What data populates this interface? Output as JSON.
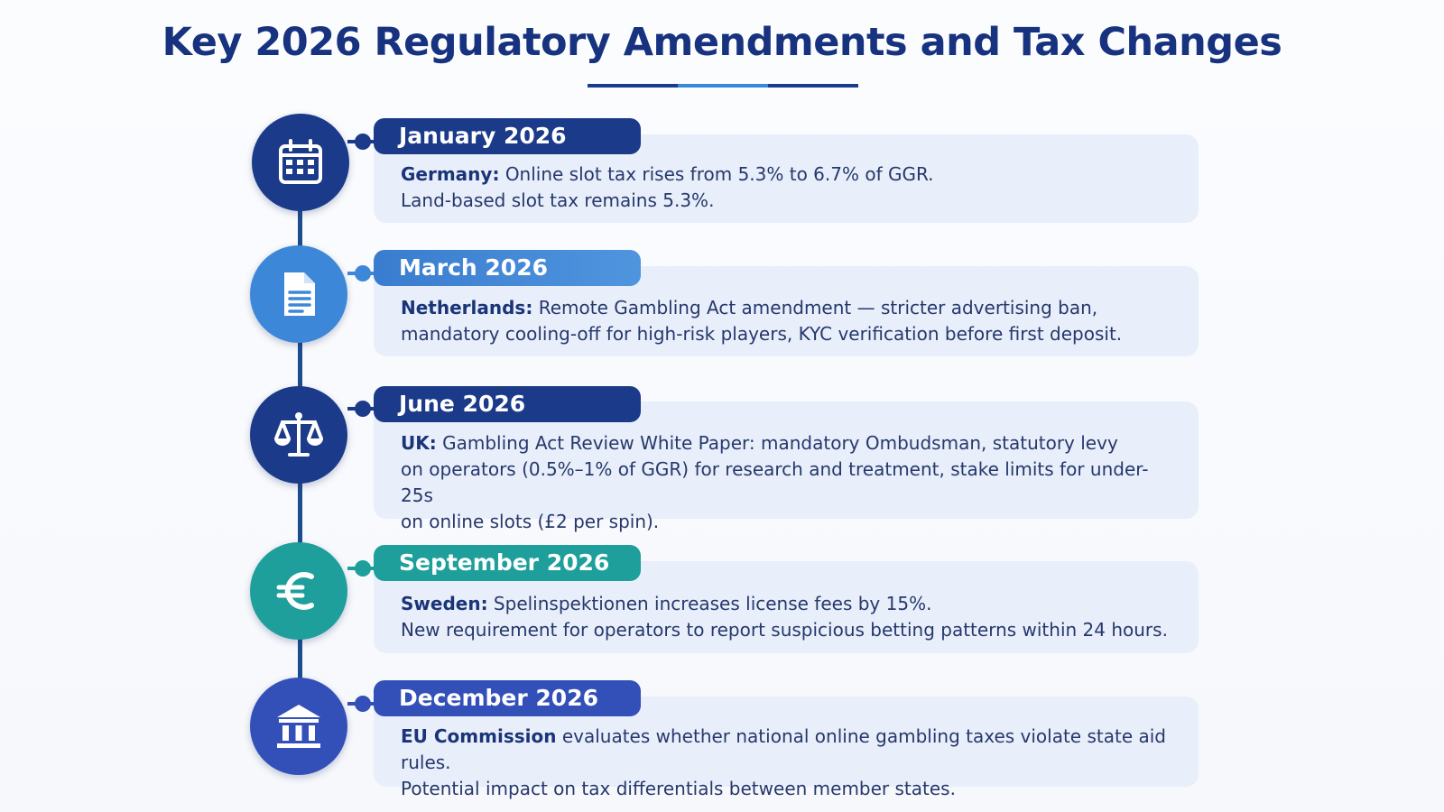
{
  "title": "Key 2026 Regulatory Amendments and Tax Changes",
  "colors": {
    "navy": "#1b3a8a",
    "blue": "#3d87d8",
    "teal": "#1e9f9b",
    "royal": "#3350b8",
    "card": "#e8effa"
  },
  "events": [
    {
      "date": "January 2026",
      "icon": "calendar-icon",
      "country": "Germany:",
      "text": "Online slot tax rises from 5.3% to 6.7% of GGR.",
      "line2": "Land-based slot tax remains 5.3%."
    },
    {
      "date": "March 2026",
      "icon": "document-icon",
      "country": "Netherlands:",
      "text": "Remote Gambling Act amendment — stricter advertising ban,",
      "line2": "mandatory cooling-off for high-risk players, KYC verification before first deposit."
    },
    {
      "date": "June 2026",
      "icon": "scales-icon",
      "country": "UK:",
      "text": "Gambling Act Review White Paper: mandatory Ombudsman, statutory levy",
      "line2": "on operators (0.5%–1% of GGR) for research and treatment, stake limits for under-25s",
      "line3": "on online slots (£2 per spin)."
    },
    {
      "date": "September 2026",
      "icon": "euro-icon",
      "country": "Sweden:",
      "text": "Spelinspektionen increases license fees by 15%.",
      "line2": "New requirement for operators to report suspicious betting patterns within 24 hours."
    },
    {
      "date": "December 2026",
      "icon": "bank-icon",
      "country": "EU Commission",
      "text": "evaluates whether national online gambling taxes violate state aid rules.",
      "line2": "Potential impact on tax differentials between member states."
    }
  ]
}
